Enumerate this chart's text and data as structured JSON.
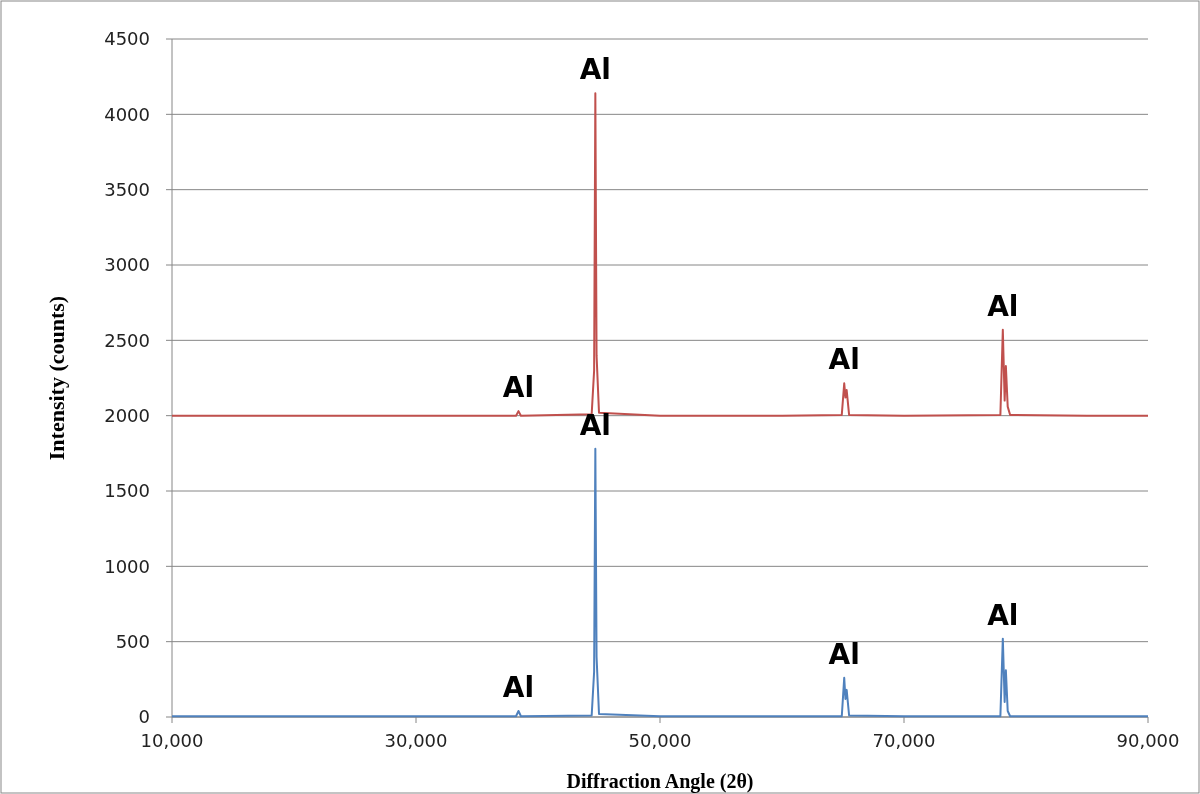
{
  "chart_data": {
    "type": "line",
    "xlabel": "Diffraction Angle (2θ)",
    "ylabel": "Intensity (counts)",
    "x": [
      10000,
      20000,
      30000,
      38200,
      38400,
      38600,
      44400,
      44600,
      44700,
      44800,
      45000,
      50000,
      60000,
      64900,
      65100,
      65200,
      65300,
      65500,
      70000,
      77900,
      78100,
      78250,
      78350,
      78500,
      78700,
      85000,
      90000
    ],
    "series": [
      {
        "color": "#c0504d",
        "values": [
          2000,
          2000,
          2000,
          2000,
          2030,
          2000,
          2010,
          2300,
          4140,
          2400,
          2020,
          2000,
          2000,
          2005,
          2215,
          2120,
          2170,
          2005,
          2000,
          2005,
          2570,
          2100,
          2330,
          2060,
          2005,
          2000,
          2000
        ]
      },
      {
        "color": "#4f81bd",
        "values": [
          5,
          5,
          5,
          5,
          40,
          5,
          10,
          300,
          1780,
          400,
          20,
          5,
          5,
          5,
          260,
          120,
          180,
          10,
          5,
          5,
          520,
          100,
          310,
          40,
          5,
          5,
          5
        ]
      }
    ],
    "xlim": [
      10000,
      90000
    ],
    "xticks": [
      {
        "value": 10000,
        "label": "10,000"
      },
      {
        "value": 30000,
        "label": "30,000"
      },
      {
        "value": 50000,
        "label": "50,000"
      },
      {
        "value": 70000,
        "label": "70,000"
      },
      {
        "value": 90000,
        "label": "90,000"
      }
    ],
    "ylim": [
      0,
      4500
    ],
    "yticks": [
      0,
      500,
      1000,
      1500,
      2000,
      2500,
      3000,
      3500,
      4000,
      4500
    ],
    "grid": "y",
    "marker": "none",
    "line_style": "solid",
    "annotations": [
      {
        "text": "Al",
        "x": 38400,
        "y": 2030
      },
      {
        "text": "Al",
        "x": 44700,
        "y": 4140
      },
      {
        "text": "Al",
        "x": 65100,
        "y": 2215
      },
      {
        "text": "Al",
        "x": 78100,
        "y": 2570
      },
      {
        "text": "Al",
        "x": 38400,
        "y": 40
      },
      {
        "text": "Al",
        "x": 44700,
        "y": 1780
      },
      {
        "text": "Al",
        "x": 65100,
        "y": 260
      },
      {
        "text": "Al",
        "x": 78100,
        "y": 520
      }
    ]
  }
}
